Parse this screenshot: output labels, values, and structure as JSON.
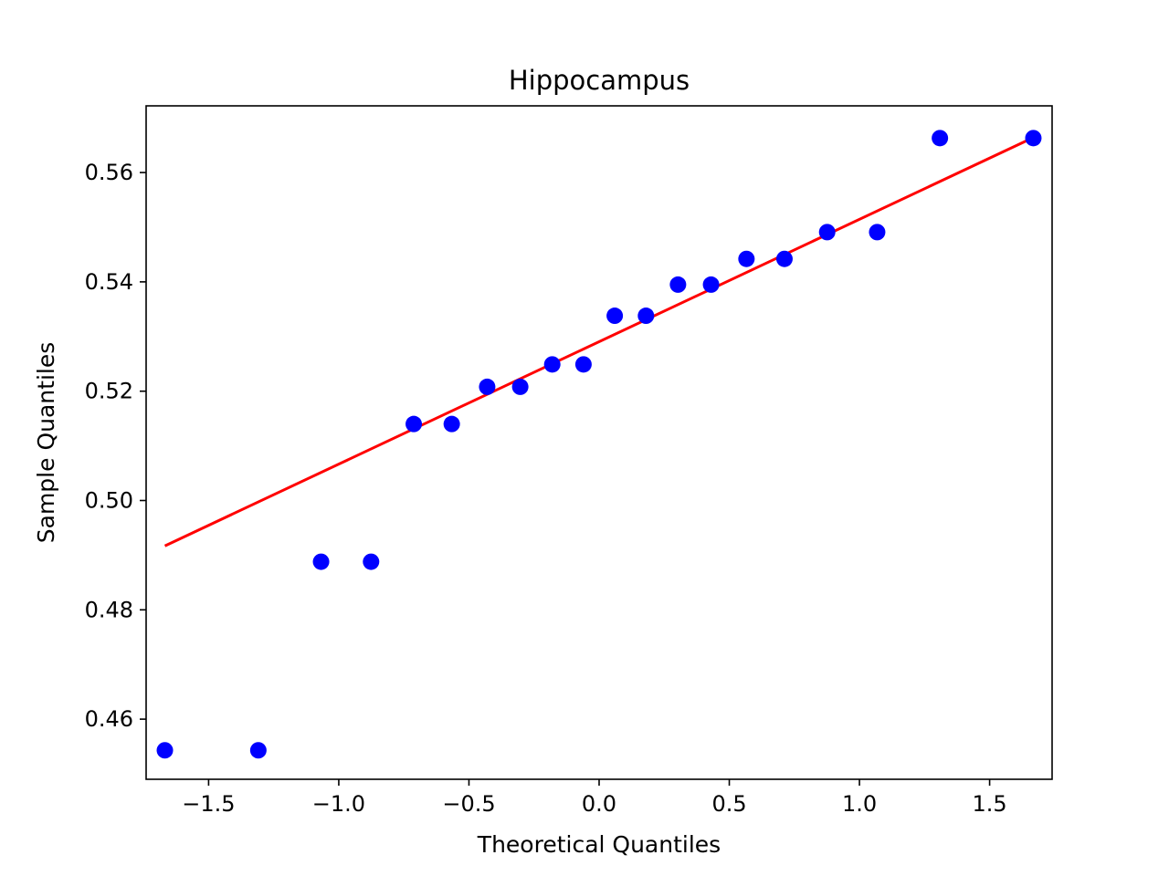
{
  "chart_data": {
    "type": "scatter",
    "title": "Hippocampus",
    "xlabel": "Theoretical Quantiles",
    "ylabel": "Sample Quantiles",
    "xlim": [
      -1.74,
      1.74
    ],
    "ylim": [
      0.449,
      0.5722
    ],
    "x_ticks": [
      -1.5,
      -1.0,
      -0.5,
      0.0,
      0.5,
      1.0,
      1.5
    ],
    "x_tick_labels": [
      "−1.5",
      "−1.0",
      "−0.5",
      "0.0",
      "0.5",
      "1.0",
      "1.5"
    ],
    "y_ticks": [
      0.46,
      0.48,
      0.5,
      0.52,
      0.54,
      0.56
    ],
    "y_tick_labels": [
      "0.46",
      "0.48",
      "0.50",
      "0.52",
      "0.54",
      "0.56"
    ],
    "grid": false,
    "series": [
      {
        "type": "scatter",
        "color": "#0000ff",
        "points": [
          {
            "x": -1.668,
            "y": 0.4543
          },
          {
            "x": -1.309,
            "y": 0.4543
          },
          {
            "x": -1.068,
            "y": 0.4888
          },
          {
            "x": -0.876,
            "y": 0.4888
          },
          {
            "x": -0.712,
            "y": 0.514
          },
          {
            "x": -0.566,
            "y": 0.514
          },
          {
            "x": -0.43,
            "y": 0.5208
          },
          {
            "x": -0.303,
            "y": 0.5208
          },
          {
            "x": -0.18,
            "y": 0.5249
          },
          {
            "x": -0.06,
            "y": 0.5249
          },
          {
            "x": 0.06,
            "y": 0.5338
          },
          {
            "x": 0.18,
            "y": 0.5338
          },
          {
            "x": 0.303,
            "y": 0.5395
          },
          {
            "x": 0.43,
            "y": 0.5395
          },
          {
            "x": 0.566,
            "y": 0.5442
          },
          {
            "x": 0.712,
            "y": 0.5442
          },
          {
            "x": 0.876,
            "y": 0.5491
          },
          {
            "x": 1.068,
            "y": 0.5491
          },
          {
            "x": 1.309,
            "y": 0.5663
          },
          {
            "x": 1.668,
            "y": 0.5663
          }
        ]
      },
      {
        "type": "line",
        "color": "#ff0000",
        "points": [
          {
            "x": -1.668,
            "y": 0.4917
          },
          {
            "x": 1.668,
            "y": 0.5664
          }
        ]
      }
    ]
  }
}
